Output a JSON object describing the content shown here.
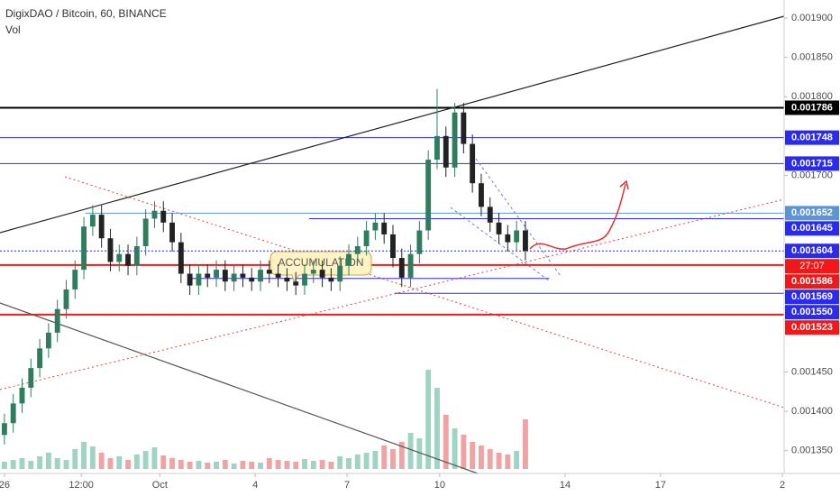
{
  "chart_data": {
    "type": "candlestick",
    "title": "DigixDAO / Bitcoin, 60, BINANCE",
    "subtitle": "Vol",
    "annotation": "ACCUMULATION",
    "countdown": "27:07",
    "up_color": "#2f7d5e",
    "down_color": "#222222",
    "volume_up_color": "#9fd3c3",
    "volume_down_color": "#f1a3a3",
    "xlim": [
      -0.5,
      88.3
    ],
    "xticks": [
      {
        "value": 0,
        "label": "26"
      },
      {
        "value": 8.7,
        "label": "12:00"
      },
      {
        "value": 17.6,
        "label": "Oct"
      },
      {
        "value": 28.4,
        "label": "4"
      },
      {
        "value": 38.8,
        "label": "7"
      },
      {
        "value": 49.3,
        "label": "10"
      },
      {
        "value": 63.5,
        "label": "14"
      },
      {
        "value": 74.3,
        "label": "17"
      },
      {
        "value": 88.1,
        "label": "2"
      }
    ],
    "ylim": [
      0.001321,
      0.001923
    ],
    "yticks": [
      {
        "value": 0.0019,
        "label": "0.001900"
      },
      {
        "value": 0.00185,
        "label": "0.001850"
      },
      {
        "value": 0.0018,
        "label": "0.001800"
      },
      {
        "value": 0.0017,
        "label": "0.001700"
      },
      {
        "value": 0.00145,
        "label": "0.001450"
      },
      {
        "value": 0.0014,
        "label": "0.001400"
      },
      {
        "value": 0.00135,
        "label": "0.001350"
      }
    ],
    "open": [
      0.00137,
      0.001385,
      0.00141,
      0.00143,
      0.001455,
      0.00148,
      0.0015,
      0.00153,
      0.001555,
      0.00158,
      0.001635,
      0.00165,
      0.00162,
      0.00159,
      0.0016,
      0.001585,
      0.00161,
      0.001645,
      0.001655,
      0.00164,
      0.001615,
      0.001575,
      0.00156,
      0.001575,
      0.00157,
      0.00158,
      0.001565,
      0.001575,
      0.00157,
      0.001565,
      0.00158,
      0.001575,
      0.00157,
      0.001565,
      0.00156,
      0.001575,
      0.00158,
      0.00157,
      0.001565,
      0.001585,
      0.0016,
      0.00161,
      0.00163,
      0.00164,
      0.001625,
      0.001595,
      0.00157,
      0.0016,
      0.00163,
      0.00172,
      0.00175,
      0.00171,
      0.00178,
      0.00174,
      0.00169,
      0.00166,
      0.00164,
      0.001625,
      0.001615,
      0.00163
    ],
    "high": [
      0.001397,
      0.001422,
      0.001442,
      0.001467,
      0.001492,
      0.001512,
      0.001542,
      0.001567,
      0.001592,
      0.001647,
      0.001662,
      0.001662,
      0.001632,
      0.001612,
      0.001612,
      0.001622,
      0.001657,
      0.001667,
      0.001667,
      0.001652,
      0.001627,
      0.001587,
      0.001587,
      0.001587,
      0.001592,
      0.001592,
      0.001587,
      0.001587,
      0.001582,
      0.001592,
      0.001592,
      0.001587,
      0.001582,
      0.001577,
      0.001587,
      0.001592,
      0.001592,
      0.001582,
      0.001597,
      0.001612,
      0.001622,
      0.001642,
      0.001652,
      0.001652,
      0.001637,
      0.001607,
      0.001612,
      0.001642,
      0.001732,
      0.00181,
      0.001762,
      0.001792,
      0.001792,
      0.001752,
      0.001702,
      0.001672,
      0.001652,
      0.001637,
      0.001642,
      0.001642
    ],
    "low": [
      0.001358,
      0.001373,
      0.001398,
      0.001418,
      0.001443,
      0.001468,
      0.001488,
      0.001518,
      0.001543,
      0.001568,
      0.001623,
      0.001608,
      0.001578,
      0.001578,
      0.001573,
      0.001573,
      0.001598,
      0.001633,
      0.001628,
      0.001603,
      0.001563,
      0.001548,
      0.001548,
      0.001558,
      0.001558,
      0.001553,
      0.001553,
      0.001558,
      0.001553,
      0.001553,
      0.001563,
      0.001558,
      0.001553,
      0.001548,
      0.001548,
      0.001563,
      0.001558,
      0.001553,
      0.001553,
      0.001573,
      0.001588,
      0.001598,
      0.001618,
      0.001613,
      0.001583,
      0.001558,
      0.001558,
      0.001588,
      0.001618,
      0.001708,
      0.001698,
      0.001698,
      0.001728,
      0.001678,
      0.001648,
      0.001628,
      0.001613,
      0.001603,
      0.001603,
      0.001592
    ],
    "close": [
      0.001385,
      0.00141,
      0.00143,
      0.001455,
      0.00148,
      0.0015,
      0.00153,
      0.001555,
      0.00158,
      0.001635,
      0.00165,
      0.00162,
      0.00159,
      0.0016,
      0.001585,
      0.00161,
      0.001645,
      0.001655,
      0.00164,
      0.001615,
      0.001575,
      0.00156,
      0.001575,
      0.00157,
      0.00158,
      0.001565,
      0.001575,
      0.00157,
      0.001565,
      0.00158,
      0.001575,
      0.00157,
      0.001565,
      0.00156,
      0.001575,
      0.00158,
      0.00157,
      0.001565,
      0.001585,
      0.0016,
      0.00161,
      0.00163,
      0.00164,
      0.001625,
      0.001595,
      0.00157,
      0.0016,
      0.00163,
      0.00172,
      0.00175,
      0.00171,
      0.00178,
      0.00174,
      0.00169,
      0.00166,
      0.00164,
      0.001625,
      0.001615,
      0.00163,
      0.001604
    ],
    "volume": [
      8,
      10,
      12,
      9,
      14,
      18,
      12,
      10,
      22,
      30,
      25,
      18,
      12,
      14,
      10,
      16,
      20,
      24,
      15,
      12,
      10,
      8,
      9,
      7,
      8,
      10,
      6,
      9,
      8,
      7,
      12,
      10,
      9,
      8,
      11,
      9,
      10,
      8,
      14,
      12,
      16,
      18,
      20,
      26,
      22,
      30,
      40,
      34,
      110,
      90,
      60,
      45,
      38,
      30,
      26,
      22,
      18,
      16,
      20,
      55
    ],
    "levels": [
      {
        "value": 0.001786,
        "color": "#000000",
        "style": "thick",
        "from": -0.5,
        "tag_color": "#000000"
      },
      {
        "value": 0.001748,
        "color": "#2b2bf0",
        "style": "thin",
        "from": -0.5,
        "tag_color": "#2b2bf0"
      },
      {
        "value": 0.001715,
        "color": "#2b2bf0",
        "style": "thin",
        "from": -0.5,
        "tag_color": "#2b2bf0"
      },
      {
        "value": 0.001652,
        "color": "#5b95d6",
        "style": "thin",
        "from": 9.2,
        "tag_color": "#5b95d6"
      },
      {
        "value": 0.001645,
        "color": "#2b2bf0",
        "style": "thin",
        "from": 34.5,
        "tag_color": "#2b2bf0"
      },
      {
        "value": 0.001604,
        "color": "#2b2bf0",
        "style": "dotted",
        "from": -0.5,
        "tag_color": "#2b2bf0"
      },
      {
        "value": 0.001586,
        "color": "#f01818",
        "style": "thick",
        "from": -0.5,
        "tag_color": "#f01818"
      },
      {
        "value": 0.001569,
        "color": "#2b2bf0",
        "style": "thin",
        "from": 21.2,
        "to": 61.7,
        "tag_color": "#2b2bf0"
      },
      {
        "value": 0.00155,
        "label": "0.001550",
        "color": "#2b2bf0",
        "style": "thin",
        "from": 44.2,
        "tag_color": "#2b2bf0"
      },
      {
        "value": 0.001523,
        "color": "#f01818",
        "style": "thick",
        "from": -0.5,
        "tag_color": "#f01818"
      }
    ]
  }
}
